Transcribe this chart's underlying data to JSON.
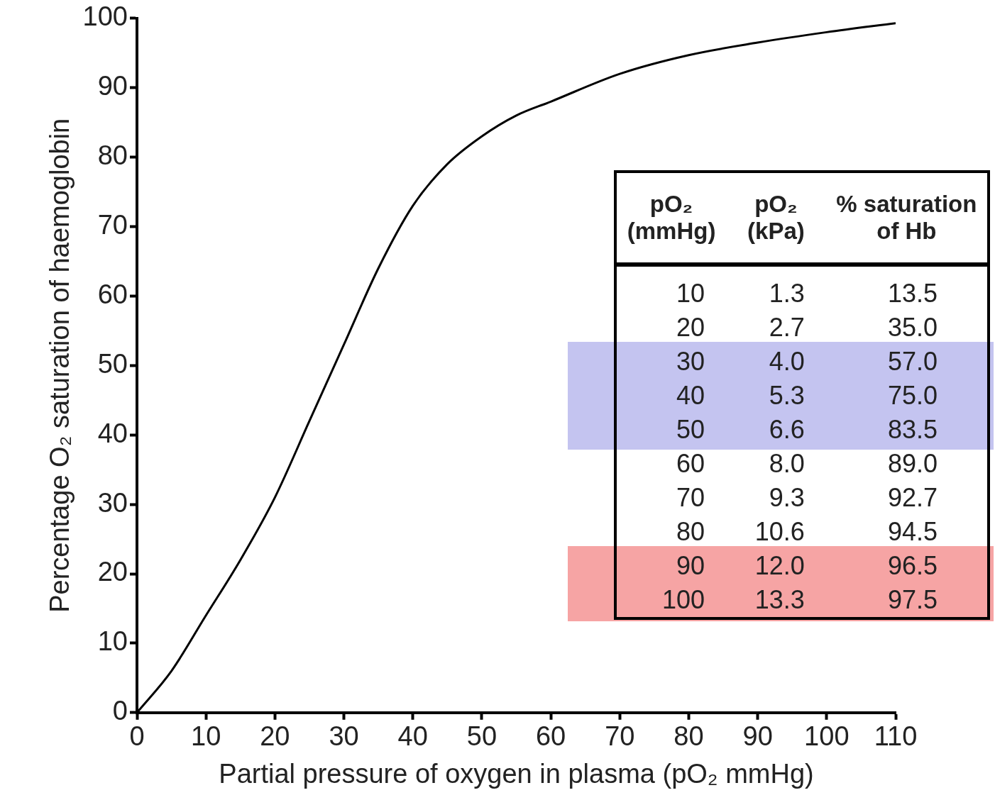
{
  "chart_data": [
    {
      "type": "line",
      "xlabel": "Partial pressure of oxygen in plasma (pO₂ mmHg)",
      "ylabel": "Percentage O₂ saturation of haemoglobin",
      "x": [
        0,
        5,
        10,
        15,
        20,
        25,
        30,
        35,
        40,
        45,
        50,
        55,
        60,
        70,
        80,
        90,
        100,
        110
      ],
      "series": [
        {
          "color": "#000000",
          "values": [
            0,
            6,
            14,
            22,
            31,
            42,
            53,
            64,
            73,
            79,
            83,
            86,
            88,
            92,
            94.7,
            96.5,
            98,
            99.3
          ]
        }
      ],
      "xlim": [
        0,
        110
      ],
      "xticks": [
        0,
        10,
        20,
        30,
        40,
        50,
        60,
        70,
        80,
        90,
        100,
        110
      ],
      "ylim": [
        0,
        100
      ],
      "yticks": [
        0,
        10,
        20,
        30,
        40,
        50,
        60,
        70,
        80,
        90,
        100
      ]
    },
    {
      "type": "heatmap",
      "ylabel": "pO₂ (mmHg)",
      "categories": [
        "pO₂ (kPa)",
        "% saturation of Hb"
      ],
      "y_categories": [
        "10",
        "20",
        "30",
        "40",
        "50",
        "60",
        "70",
        "80",
        "90",
        "100"
      ],
      "cells": [
        [
          1.3,
          13.5
        ],
        [
          2.7,
          35.0
        ],
        [
          4.0,
          57.0
        ],
        [
          5.3,
          75.0
        ],
        [
          6.6,
          83.5
        ],
        [
          8.0,
          89.0
        ],
        [
          9.3,
          92.7
        ],
        [
          10.6,
          94.5
        ],
        [
          12.0,
          96.5
        ],
        [
          13.3,
          97.5
        ]
      ],
      "cell_labels": [
        [
          "1.3",
          "13.5"
        ],
        [
          "2.7",
          "35.0"
        ],
        [
          "4.0",
          "57.0"
        ],
        [
          "5.3",
          "75.0"
        ],
        [
          "6.6",
          "83.5"
        ],
        [
          "8.0",
          "89.0"
        ],
        [
          "9.3",
          "92.7"
        ],
        [
          "10.6",
          "94.5"
        ],
        [
          "12.0",
          "96.5"
        ],
        [
          "13.3",
          "97.5"
        ]
      ],
      "bands": [
        {
          "axis": "y",
          "from": "30",
          "to": "50",
          "color": "#c4c4f0"
        },
        {
          "axis": "y",
          "from": "90",
          "to": "100",
          "color": "#f6a4a4"
        }
      ]
    }
  ]
}
